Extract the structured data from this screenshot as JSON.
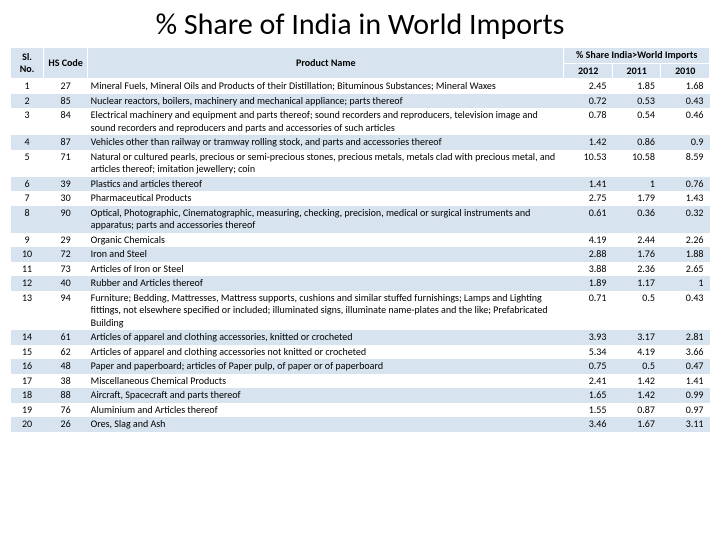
{
  "title": "% Share of India in World Imports",
  "table": {
    "header": {
      "sl": "Sl. No.",
      "hs": "HS Code",
      "name": "Product Name",
      "group": "% Share India>World Imports",
      "years": [
        "2012",
        "2011",
        "2010"
      ]
    },
    "band_color": "#d7e3ee",
    "font_size": 10,
    "col_widths": {
      "sl": 30,
      "hs": 40,
      "name": 432,
      "yr": 44
    },
    "rows": [
      {
        "sl": "1",
        "hs": "27",
        "name": "Mineral Fuels, Mineral Oils and Products of their Distillation; Bituminous Substances; Mineral Waxes",
        "y2012": "2.45",
        "y2011": "1.85",
        "y2010": "1.68"
      },
      {
        "sl": "2",
        "hs": "85",
        "name": "Nuclear reactors, boilers, machinery and mechanical appliance; parts thereof",
        "y2012": "0.72",
        "y2011": "0.53",
        "y2010": "0.43"
      },
      {
        "sl": "3",
        "hs": "84",
        "name": "Electrical machinery and equipment and parts thereof; sound recorders and reproducers, television image and sound recorders and reproducers and parts and accessories of such articles",
        "y2012": "0.78",
        "y2011": "0.54",
        "y2010": "0.46"
      },
      {
        "sl": "4",
        "hs": "87",
        "name": "Vehicles other than railway or tramway rolling stock, and parts and accessories thereof",
        "y2012": "1.42",
        "y2011": "0.86",
        "y2010": "0.9"
      },
      {
        "sl": "5",
        "hs": "71",
        "name": "Natural or cultured pearls, precious or semi-precious stones, precious metals, metals clad with precious metal, and articles thereof; imitation jewellery; coin",
        "y2012": "10.53",
        "y2011": "10.58",
        "y2010": "8.59"
      },
      {
        "sl": "6",
        "hs": "39",
        "name": "Plastics and articles thereof",
        "y2012": "1.41",
        "y2011": "1",
        "y2010": "0.76"
      },
      {
        "sl": "7",
        "hs": "30",
        "name": "Pharmaceutical Products",
        "y2012": "2.75",
        "y2011": "1.79",
        "y2010": "1.43"
      },
      {
        "sl": "8",
        "hs": "90",
        "name": "Optical, Photographic, Cinematographic, measuring, checking, precision, medical or surgical instruments and apparatus; parts and accessories thereof",
        "y2012": "0.61",
        "y2011": "0.36",
        "y2010": "0.32"
      },
      {
        "sl": "9",
        "hs": "29",
        "name": "Organic Chemicals",
        "y2012": "4.19",
        "y2011": "2.44",
        "y2010": "2.26"
      },
      {
        "sl": "10",
        "hs": "72",
        "name": "Iron and Steel",
        "y2012": "2.88",
        "y2011": "1.76",
        "y2010": "1.88"
      },
      {
        "sl": "11",
        "hs": "73",
        "name": "Articles of Iron or Steel",
        "y2012": "3.88",
        "y2011": "2.36",
        "y2010": "2.65"
      },
      {
        "sl": "12",
        "hs": "40",
        "name": "Rubber and Articles thereof",
        "y2012": "1.89",
        "y2011": "1.17",
        "y2010": "1"
      },
      {
        "sl": "13",
        "hs": "94",
        "name": "Furniture; Bedding, Mattresses, Mattress supports, cushions and similar stuffed furnishings; Lamps and Lighting fittings, not elsewhere specified or included; illuminated signs, illuminate name-plates and the like; Prefabricated Building",
        "y2012": "0.71",
        "y2011": "0.5",
        "y2010": "0.43"
      },
      {
        "sl": "14",
        "hs": "61",
        "name": "Articles of apparel and clothing accessories, knitted or crocheted",
        "y2012": "3.93",
        "y2011": "3.17",
        "y2010": "2.81"
      },
      {
        "sl": "15",
        "hs": "62",
        "name": "Articles of apparel and clothing accessories not knitted or crocheted",
        "y2012": "5.34",
        "y2011": "4.19",
        "y2010": "3.66"
      },
      {
        "sl": "16",
        "hs": "48",
        "name": "Paper and paperboard; articles of Paper pulp, of paper or of paperboard",
        "y2012": "0.75",
        "y2011": "0.5",
        "y2010": "0.47"
      },
      {
        "sl": "17",
        "hs": "38",
        "name": "Miscellaneous Chemical Products",
        "y2012": "2.41",
        "y2011": "1.42",
        "y2010": "1.41"
      },
      {
        "sl": "18",
        "hs": "88",
        "name": "Aircraft, Spacecraft and parts thereof",
        "y2012": "1.65",
        "y2011": "1.42",
        "y2010": "0.99"
      },
      {
        "sl": "19",
        "hs": "76",
        "name": "Aluminium and Articles thereof",
        "y2012": "1.55",
        "y2011": "0.87",
        "y2010": "0.97"
      },
      {
        "sl": "20",
        "hs": "26",
        "name": "Ores, Slag and Ash",
        "y2012": "3.46",
        "y2011": "1.67",
        "y2010": "3.11"
      }
    ]
  }
}
